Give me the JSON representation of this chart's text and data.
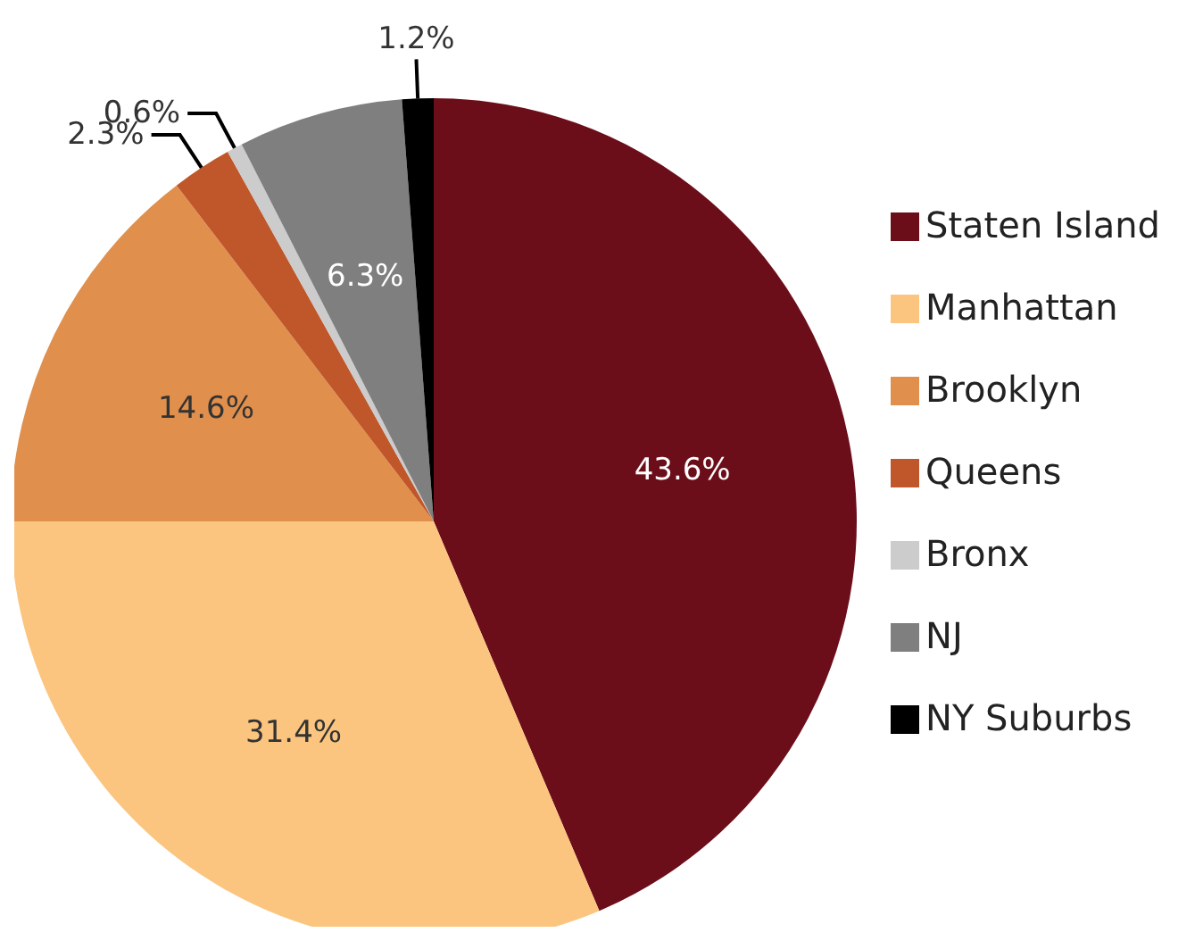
{
  "chart_data": {
    "type": "pie",
    "categories": [
      "Staten Island",
      "Manhattan",
      "Brooklyn",
      "Queens",
      "Bronx",
      "NJ",
      "NY Suburbs"
    ],
    "values": [
      43.6,
      31.4,
      14.6,
      2.3,
      0.6,
      6.3,
      1.2
    ],
    "colors": [
      "#6b0e1a",
      "#fbc57f",
      "#e08f4c",
      "#c0572a",
      "#cccccc",
      "#7f7f7f",
      "#000000"
    ],
    "value_labels": [
      "43.6%",
      "31.4%",
      "14.6%",
      "2.3%",
      "0.6%",
      "6.3%",
      "1.2%"
    ],
    "legend": "right"
  }
}
